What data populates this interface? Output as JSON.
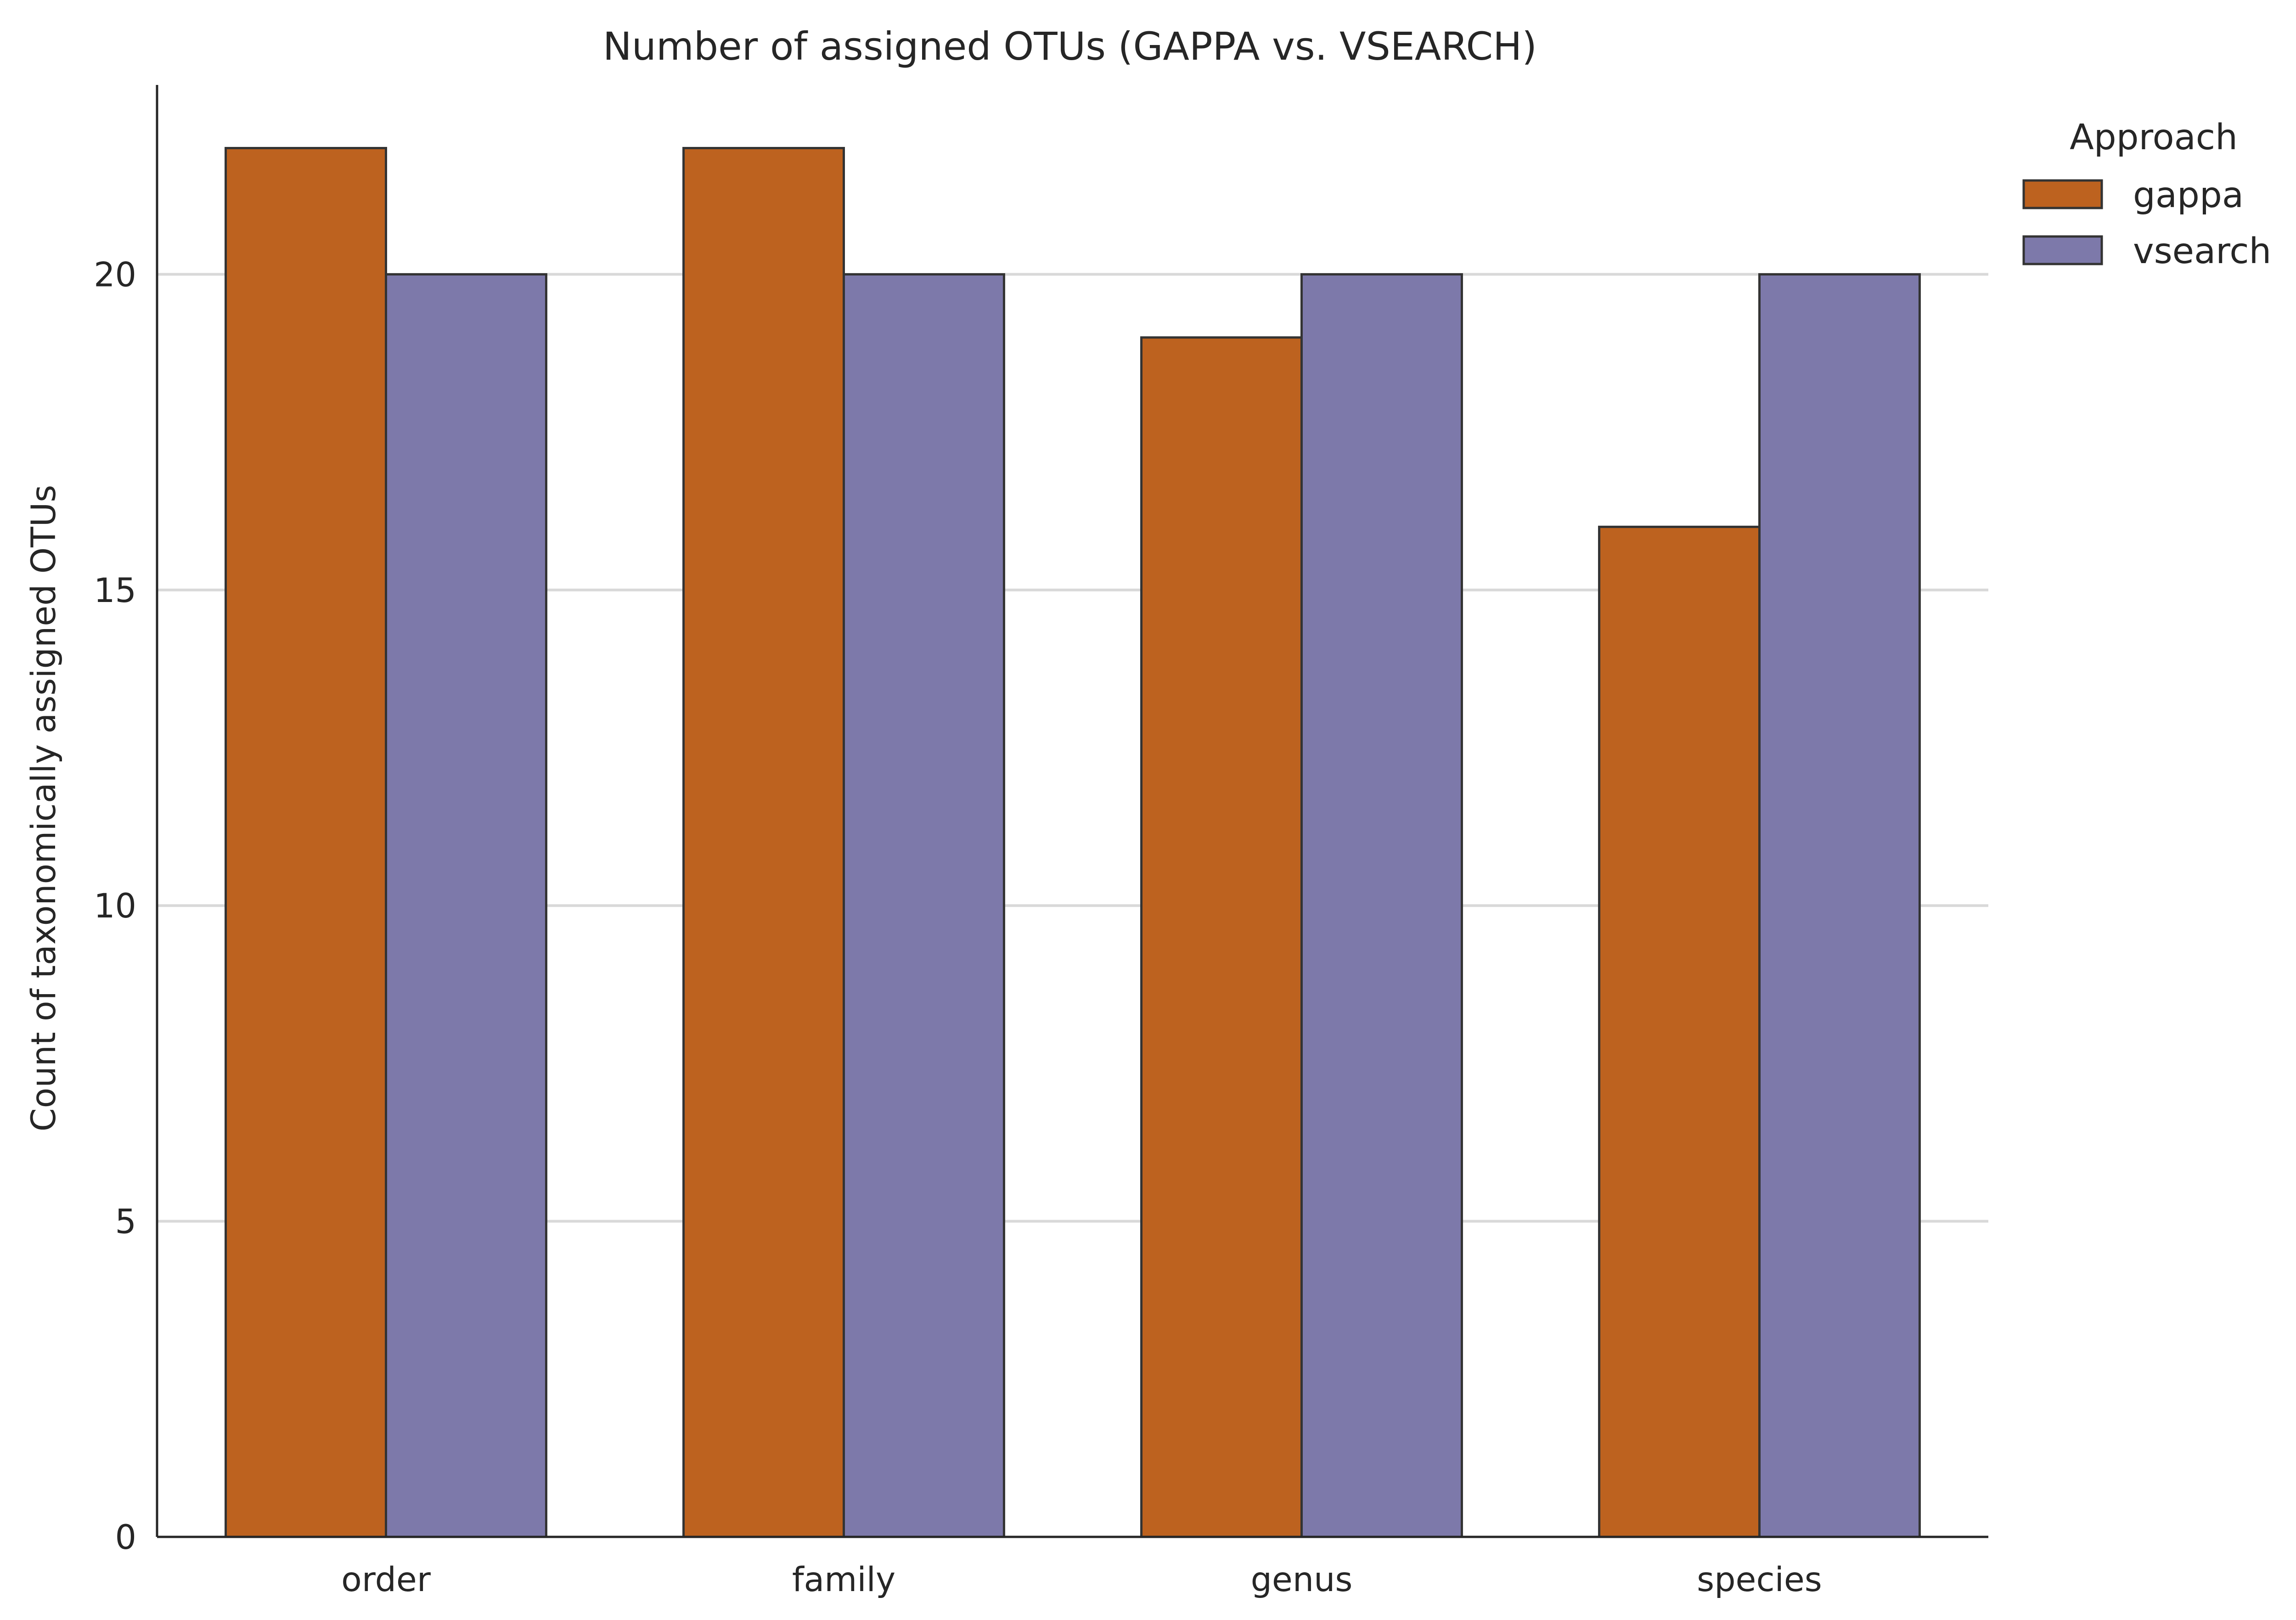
{
  "chart_data": {
    "type": "bar",
    "title": "Number of assigned OTUs (GAPPA vs. VSEARCH)",
    "xlabel": "",
    "ylabel": "Count of taxonomically assigned OTUs",
    "categories": [
      "order",
      "family",
      "genus",
      "species"
    ],
    "series": [
      {
        "name": "gappa",
        "values": [
          22,
          22,
          19,
          16
        ],
        "color": "#bd621f"
      },
      {
        "name": "vsearch",
        "values": [
          20,
          20,
          20,
          20
        ],
        "color": "#7d79aa"
      }
    ],
    "ylim": [
      0,
      23
    ],
    "yticks": [
      0,
      5,
      10,
      15,
      20
    ],
    "grid": "y",
    "legend": {
      "title": "Approach",
      "placement": "outside-top-right"
    }
  }
}
